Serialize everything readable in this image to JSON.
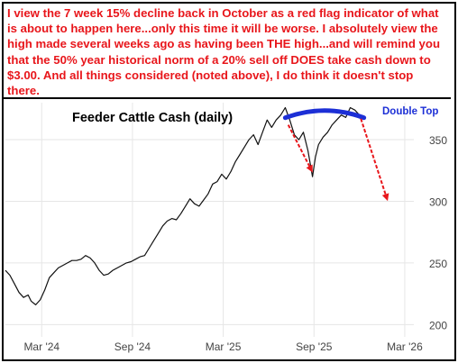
{
  "annotation": {
    "text": "I view the 7 week 15% decline back in October as a red flag indicator of what is about to happen here...only this time it will be worse. I absolutely view the high made several weeks ago as having been THE high...and will remind you that the 50% year historical norm of a 20% sell off DOES take cash down to $3.00. And all things considered (noted above), I do think it doesn't stop there."
  },
  "colors": {
    "annotation_text": "#e8161b",
    "price_line": "#111111",
    "double_top_arc": "#1c2fd6",
    "arrow": "#e8161b",
    "grid": "#e6e6e6",
    "double_top_label": "#1c2fd6"
  },
  "chart_data": {
    "type": "line",
    "title": "Feeder Cattle Cash (daily)",
    "x_ticks": [
      "Mar '24",
      "Sep '24",
      "Mar '25",
      "Sep '25",
      "Mar '26"
    ],
    "y_ticks": [
      200,
      250,
      300,
      350
    ],
    "ylim": [
      190,
      380
    ],
    "xlim": [
      0,
      27
    ],
    "grid": true,
    "annotations": [
      {
        "label": "Double Top",
        "style": "arc",
        "x_range": [
          18.5,
          23.7
        ],
        "y": 378
      }
    ],
    "arrows": [
      {
        "from": [
          18.7,
          362
        ],
        "to": [
          20.2,
          326
        ]
      },
      {
        "from": [
          23.5,
          367
        ],
        "to": [
          25.2,
          303
        ]
      }
    ],
    "series": [
      {
        "x": [
          0,
          0.3,
          0.6,
          0.9,
          1.2,
          1.5,
          1.7,
          2.0,
          2.3,
          2.6,
          2.9,
          3.2,
          3.5,
          3.8,
          4.1,
          4.4,
          4.7,
          5.0,
          5.3,
          5.6,
          5.9,
          6.2,
          6.5,
          6.8,
          7.1,
          7.4,
          7.7,
          8.0,
          8.3,
          8.6,
          8.9,
          9.2,
          9.5,
          9.8,
          10.1,
          10.4,
          10.7,
          11.0,
          11.3,
          11.6,
          11.9,
          12.2,
          12.5,
          12.8,
          13.1,
          13.4,
          13.7,
          14.0,
          14.3,
          14.6,
          14.9,
          15.2,
          15.5,
          15.8,
          16.1,
          16.4,
          16.7,
          17.0,
          17.3,
          17.6,
          17.9,
          18.2,
          18.5,
          18.8,
          19.1,
          19.4,
          19.7,
          20.0,
          20.3,
          20.5,
          20.7,
          21.0,
          21.3,
          21.6,
          21.9,
          22.2,
          22.5,
          22.8,
          23.1,
          23.4,
          23.6
        ],
        "y": [
          244,
          240,
          233,
          226,
          222,
          224,
          219,
          216,
          220,
          228,
          238,
          242,
          246,
          248,
          250,
          252,
          252,
          253,
          256,
          254,
          250,
          244,
          240,
          241,
          244,
          246,
          248,
          250,
          251,
          253,
          255,
          256,
          262,
          268,
          274,
          280,
          284,
          286,
          285,
          290,
          296,
          302,
          298,
          296,
          301,
          306,
          314,
          316,
          322,
          318,
          324,
          332,
          338,
          344,
          350,
          354,
          346,
          356,
          366,
          360,
          366,
          370,
          376,
          366,
          354,
          350,
          356,
          341,
          320,
          336,
          346,
          352,
          356,
          362,
          366,
          370,
          368,
          376,
          374,
          370,
          367
        ]
      }
    ]
  }
}
